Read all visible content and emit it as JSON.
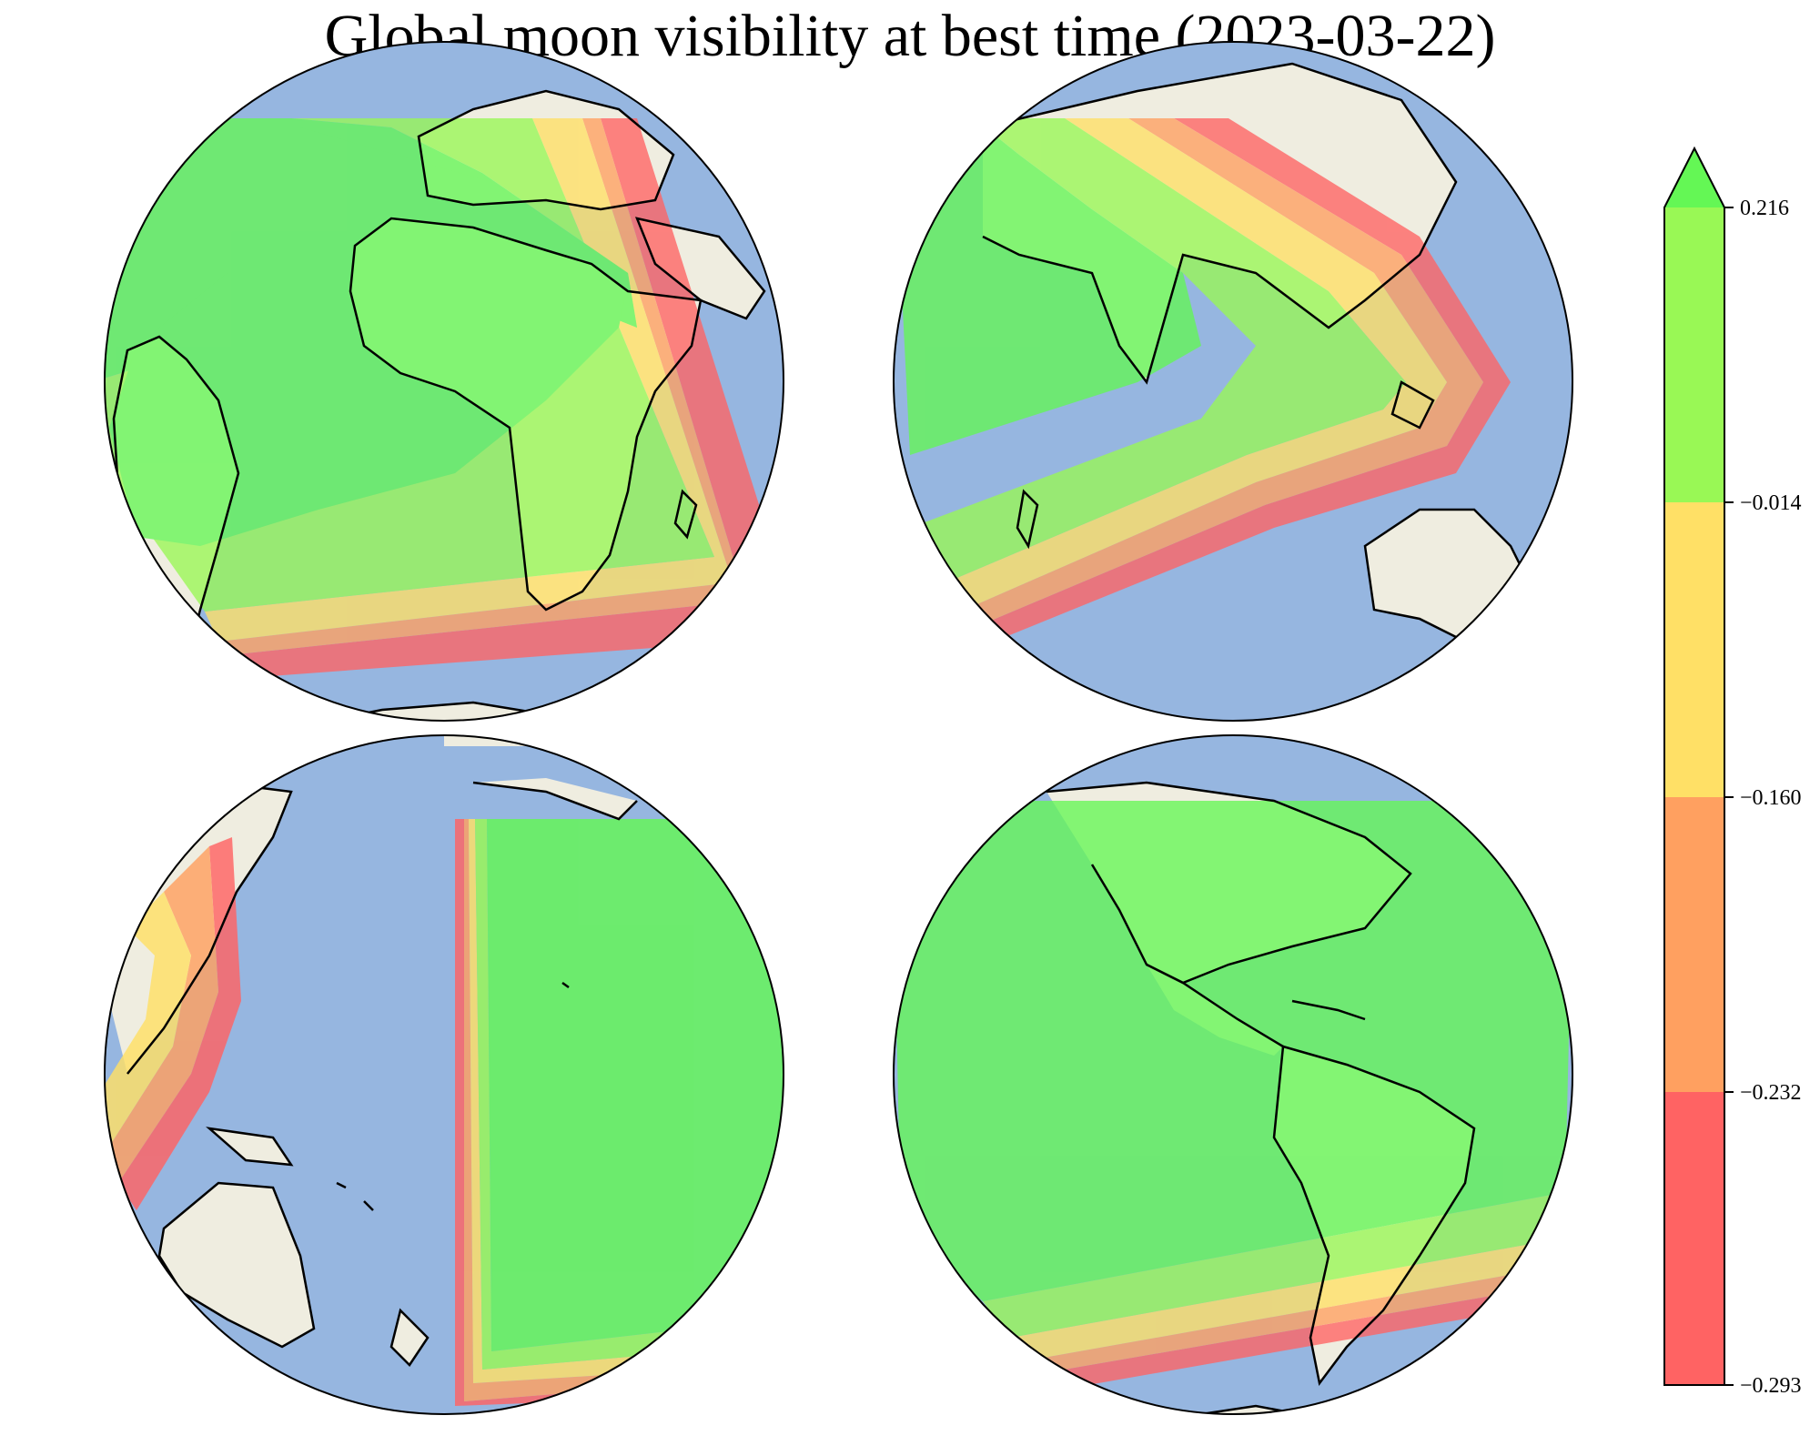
{
  "title": "Global moon visibility at best time (2023-03-22)",
  "colors": {
    "ocean": "#96b6e0",
    "land": "#efede0",
    "coast": "#000000",
    "band_1": "#ff6363",
    "band_2": "#ffa060",
    "band_3": "#ffe066",
    "band_4": "#99f855",
    "band_5": "#64f755"
  },
  "colorbar": {
    "ticks": [
      "0.216",
      "−0.014",
      "−0.160",
      "−0.232",
      "−0.293"
    ],
    "levels": [
      -0.293,
      -0.232,
      -0.16,
      -0.014,
      0.216
    ],
    "extend": "max"
  },
  "globes": [
    {
      "name": "atlantic-africa"
    },
    {
      "name": "indian-ocean-asia"
    },
    {
      "name": "pacific"
    },
    {
      "name": "americas"
    }
  ]
}
